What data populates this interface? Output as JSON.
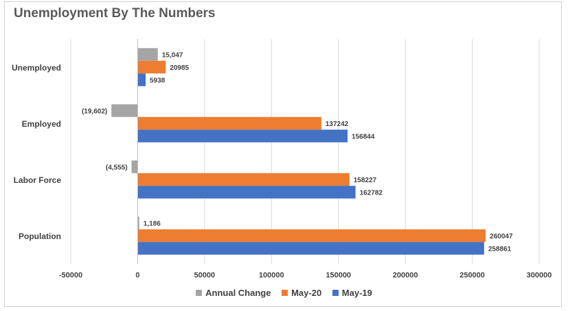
{
  "chart_data": {
    "type": "bar",
    "orientation": "horizontal",
    "title": "Unemployment By The Numbers",
    "categories": [
      "Unemployed",
      "Employed",
      "Labor Force",
      "Population"
    ],
    "series": [
      {
        "name": "Annual Change",
        "color": "#a5a5a5",
        "values": [
          15047,
          -19602,
          -4555,
          1186
        ],
        "labels": [
          "15,047",
          "(19,602)",
          "(4,555)",
          "1,186"
        ]
      },
      {
        "name": "May-20",
        "color": "#ed7d31",
        "values": [
          20985,
          137242,
          158227,
          260047
        ],
        "labels": [
          "20985",
          "137242",
          "158227",
          "260047"
        ]
      },
      {
        "name": "May-19",
        "color": "#4472c4",
        "values": [
          5938,
          156844,
          162782,
          258861
        ],
        "labels": [
          "5938",
          "156844",
          "162782",
          "258861"
        ]
      }
    ],
    "xlim": [
      -50000,
      300000
    ],
    "xticks": [
      "-50000",
      "0",
      "50000",
      "100000",
      "150000",
      "200000",
      "250000",
      "300000"
    ],
    "grid": "vertical",
    "legend_position": "bottom"
  }
}
